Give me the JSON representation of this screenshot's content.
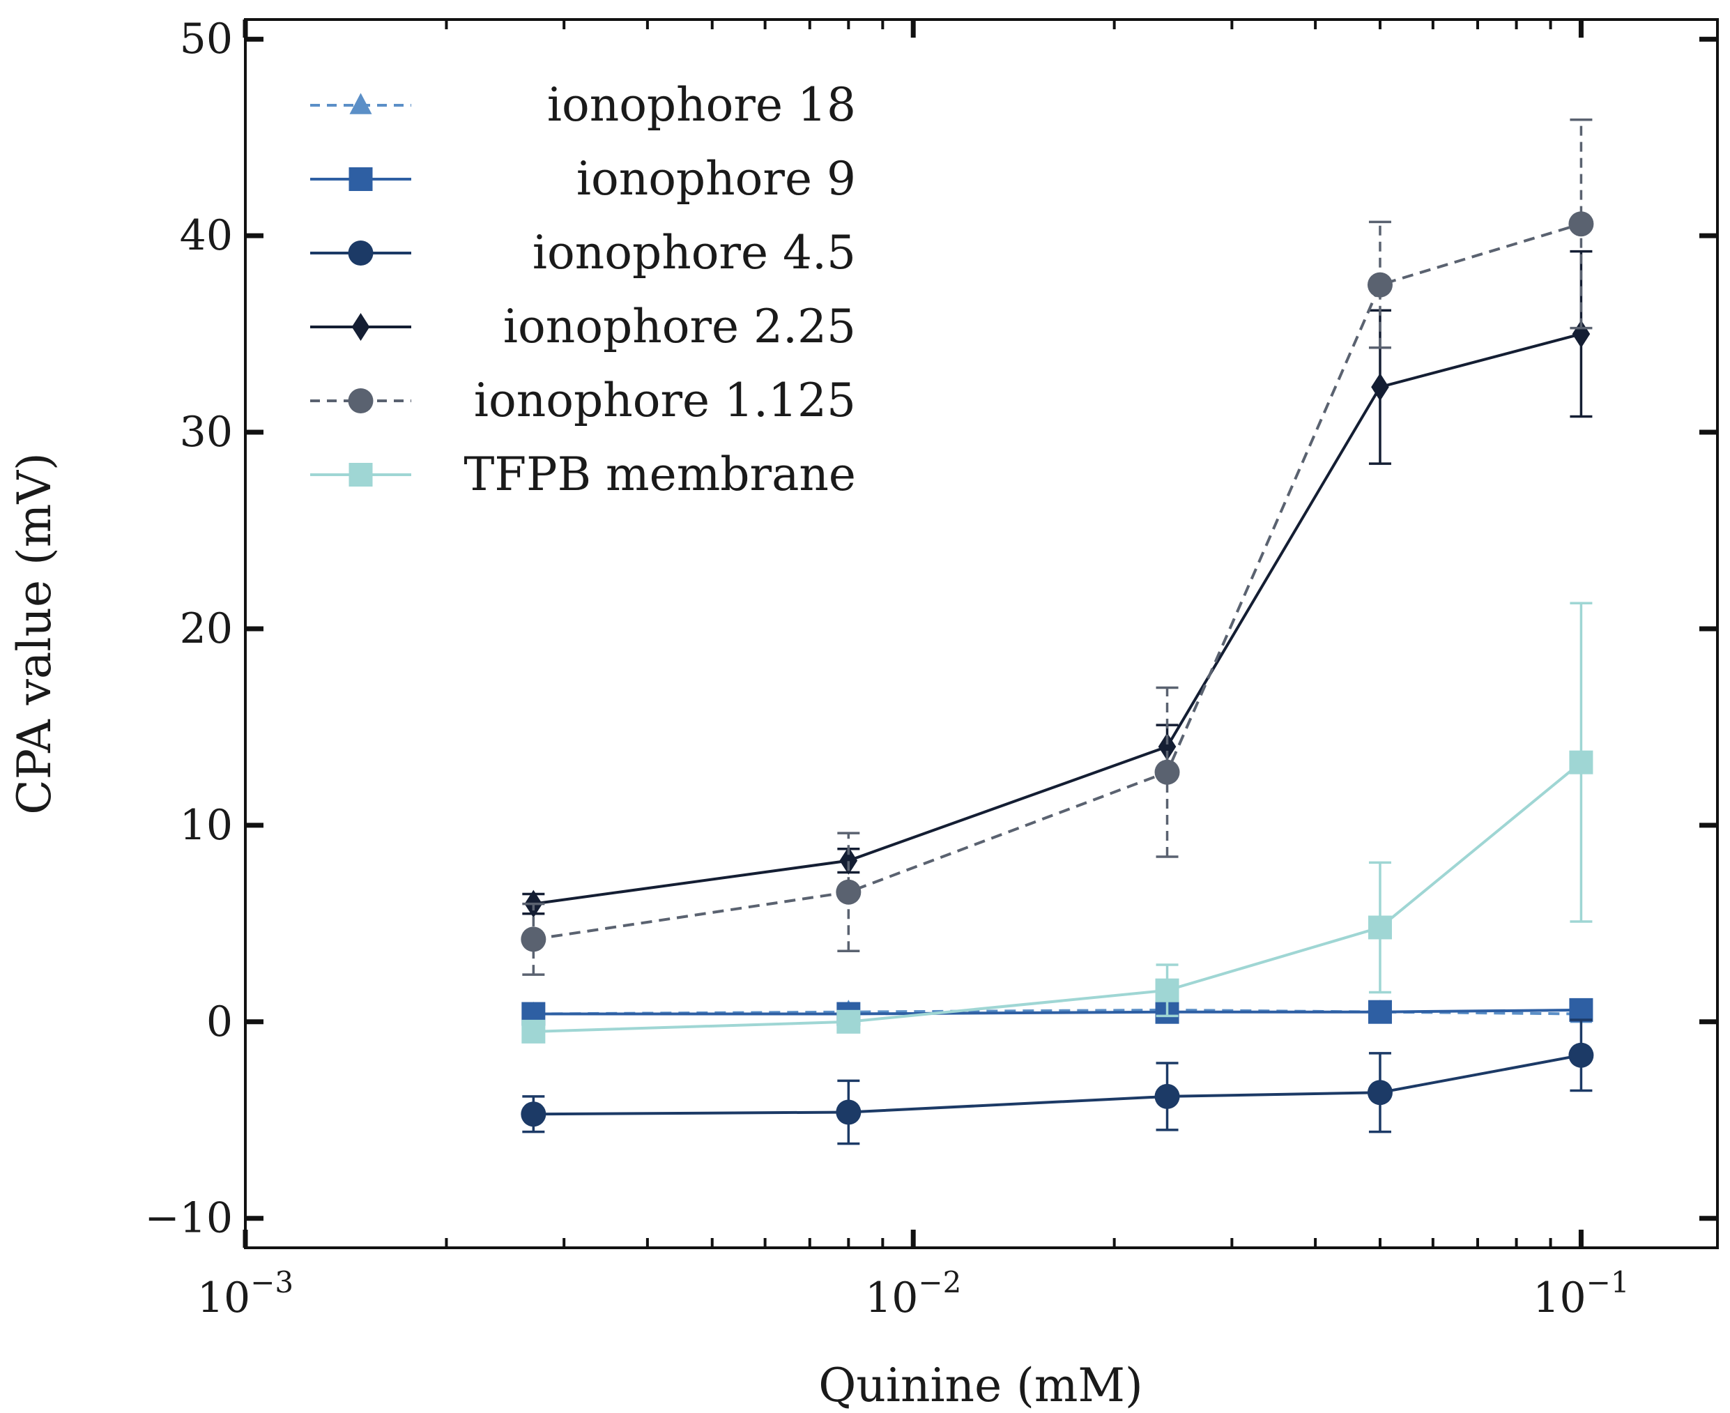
{
  "chart_data": {
    "type": "line",
    "xlabel": "Quinine (mM)",
    "ylabel": "CPA value (mV)",
    "xscale": "log",
    "xlim": [
      0.001,
      0.16
    ],
    "ylim": [
      -11.5,
      51
    ],
    "xticks": [
      {
        "value": 0.001,
        "base": "10",
        "exp": "−3"
      },
      {
        "value": 0.01,
        "base": "10",
        "exp": "−2"
      },
      {
        "value": 0.1,
        "base": "10",
        "exp": "−1"
      }
    ],
    "yticks": [
      {
        "value": -10,
        "label": "−10"
      },
      {
        "value": 0,
        "label": "0"
      },
      {
        "value": 10,
        "label": "10"
      },
      {
        "value": 20,
        "label": "20"
      },
      {
        "value": 30,
        "label": "30"
      },
      {
        "value": 40,
        "label": "40"
      },
      {
        "value": 50,
        "label": "50"
      }
    ],
    "legend_position": "top-left",
    "grid": false,
    "series": [
      {
        "name": "ionophore 18",
        "color": "#5b8fc7",
        "marker": "triangle",
        "dashed": true,
        "x": [
          0.0027,
          0.008,
          0.024,
          0.05,
          0.1
        ],
        "y": [
          0.4,
          0.5,
          0.6,
          0.5,
          0.4
        ],
        "err": [
          0,
          0,
          0,
          0,
          0
        ]
      },
      {
        "name": "ionophore 9",
        "color": "#2e5fa3",
        "marker": "square",
        "dashed": false,
        "x": [
          0.0027,
          0.008,
          0.024,
          0.05,
          0.1
        ],
        "y": [
          0.4,
          0.4,
          0.5,
          0.5,
          0.6
        ],
        "err": [
          0,
          0,
          0,
          0,
          0
        ]
      },
      {
        "name": "ionophore 4.5",
        "color": "#1c3a66",
        "marker": "circle",
        "dashed": false,
        "x": [
          0.0027,
          0.008,
          0.024,
          0.05,
          0.1
        ],
        "y": [
          -4.7,
          -4.6,
          -3.8,
          -3.6,
          -1.7
        ],
        "err": [
          0.9,
          1.6,
          1.7,
          2.0,
          1.8
        ]
      },
      {
        "name": "ionophore 2.25",
        "color": "#141e33",
        "marker": "diamond",
        "dashed": false,
        "x": [
          0.0027,
          0.008,
          0.024,
          0.05,
          0.1
        ],
        "y": [
          6.0,
          8.2,
          14.0,
          32.3,
          35.0
        ],
        "err": [
          0.5,
          0.6,
          1.1,
          3.9,
          4.2
        ]
      },
      {
        "name": "ionophore 1.125",
        "color": "#5a6270",
        "marker": "circle",
        "dashed": true,
        "x": [
          0.0027,
          0.008,
          0.024,
          0.05,
          0.1
        ],
        "y": [
          4.2,
          6.6,
          12.7,
          37.5,
          40.6
        ],
        "err": [
          1.8,
          3.0,
          4.3,
          3.2,
          5.3
        ]
      },
      {
        "name": "TFPB membrane",
        "color": "#9fd6d4",
        "marker": "square",
        "dashed": false,
        "x": [
          0.0027,
          0.008,
          0.024,
          0.05,
          0.1
        ],
        "y": [
          -0.5,
          0.0,
          1.6,
          4.8,
          13.2
        ],
        "err": [
          0,
          0,
          1.3,
          3.3,
          8.1
        ]
      }
    ]
  }
}
